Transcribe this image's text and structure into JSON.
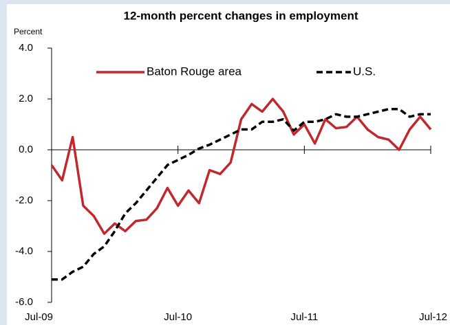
{
  "chart_data": {
    "type": "line",
    "title": "12-month percent changes in employment",
    "y_label": "Percent",
    "categories": [
      "Jul-09",
      null,
      null,
      null,
      null,
      null,
      null,
      null,
      null,
      null,
      null,
      null,
      "Jul-10",
      null,
      null,
      null,
      null,
      null,
      null,
      null,
      null,
      null,
      null,
      null,
      "Jul-11",
      null,
      null,
      null,
      null,
      null,
      null,
      null,
      null,
      null,
      null,
      null,
      "Jul-12"
    ],
    "series": [
      {
        "name": "Baton Rouge area",
        "color": "#c0282d",
        "dash": false,
        "values": [
          -0.6,
          -1.2,
          0.5,
          -2.2,
          -2.6,
          -3.3,
          -2.9,
          -3.2,
          -2.8,
          -2.75,
          -2.3,
          -1.5,
          -2.2,
          -1.6,
          -2.1,
          -0.8,
          -0.95,
          -0.5,
          1.2,
          1.8,
          1.5,
          2.0,
          1.5,
          0.6,
          1.0,
          0.25,
          1.2,
          0.85,
          0.9,
          1.3,
          0.8,
          0.5,
          0.4,
          0.0,
          0.8,
          1.3,
          0.8
        ]
      },
      {
        "name": "U.S.",
        "color": "#000000",
        "dash": true,
        "values": [
          -5.1,
          -5.1,
          -4.8,
          -4.6,
          -4.1,
          -3.8,
          -3.2,
          -2.5,
          -2.1,
          -1.6,
          -1.1,
          -0.6,
          -0.4,
          -0.2,
          0.05,
          0.2,
          0.4,
          0.6,
          0.8,
          0.8,
          1.1,
          1.1,
          1.2,
          0.75,
          1.1,
          1.1,
          1.2,
          1.4,
          1.3,
          1.3,
          1.4,
          1.5,
          1.6,
          1.6,
          1.3,
          1.4,
          1.4
        ]
      }
    ],
    "ylim": [
      -6,
      4
    ],
    "yticks": [
      {
        "value": -6,
        "label": "-6.0"
      },
      {
        "value": -4,
        "label": "-4.0"
      },
      {
        "value": -2,
        "label": "-2.0"
      },
      {
        "value": 0,
        "label": "0.0"
      },
      {
        "value": 2,
        "label": "2.0"
      },
      {
        "value": 4,
        "label": "4.0"
      }
    ],
    "grid": false,
    "legend": "top"
  }
}
